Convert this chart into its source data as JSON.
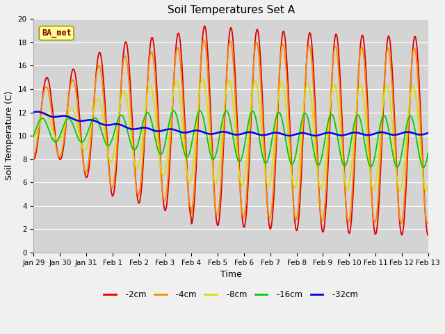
{
  "title": "Soil Temperatures Set A",
  "xlabel": "Time",
  "ylabel": "Soil Temperature (C)",
  "ylim": [
    0,
    20
  ],
  "yticks": [
    0,
    2,
    4,
    6,
    8,
    10,
    12,
    14,
    16,
    18,
    20
  ],
  "x_labels": [
    "Jan 29",
    "Jan 30",
    "Jan 31",
    "Feb 1",
    "Feb 2",
    "Feb 3",
    "Feb 4",
    "Feb 5",
    "Feb 6",
    "Feb 7",
    "Feb 8",
    "Feb 9",
    "Feb 10",
    "Feb 11",
    "Feb 12",
    "Feb 13"
  ],
  "colors": {
    "-2cm": "#dd0000",
    "-4cm": "#ff8800",
    "-8cm": "#dddd00",
    "-16cm": "#00cc00",
    "-32cm": "#0000ee"
  },
  "legend_label": "BA_met",
  "fig_facecolor": "#f0f0f0",
  "ax_facecolor": "#d4d4d4",
  "grid_color": "#ffffff",
  "title_fontsize": 11,
  "label_fontsize": 9,
  "tick_fontsize": 7.5
}
